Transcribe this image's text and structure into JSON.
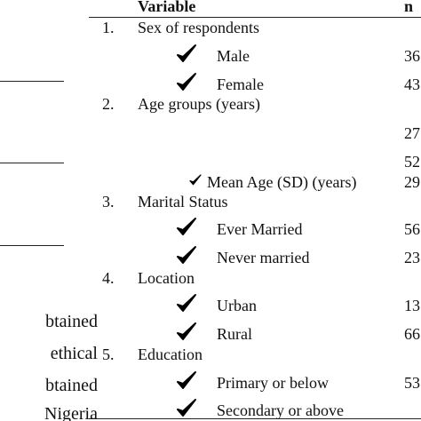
{
  "left_text": [
    "btained",
    "ethical",
    "btained",
    "Nigeria"
  ],
  "header": {
    "variable": "Variable",
    "n": "n"
  },
  "table": {
    "rows": [
      {
        "num": "1.",
        "label": "Sex of respondents"
      },
      {
        "label": "Male",
        "n": "36",
        "check": "large"
      },
      {
        "label": "Female",
        "n": "43",
        "check": "large"
      },
      {
        "num": "2.",
        "label": "Age groups (years)"
      },
      {
        "n": "27"
      },
      {
        "n": "52"
      },
      {
        "label": "Mean Age (SD) (years)",
        "n": "29",
        "check": "small"
      },
      {
        "num": "3.",
        "label": "Marital Status"
      },
      {
        "label": "Ever Married",
        "n": "56",
        "check": "large"
      },
      {
        "label": "Never married",
        "n": "23",
        "check": "large"
      },
      {
        "num": "4.",
        "label": "Location"
      },
      {
        "label": "Urban",
        "n": "13",
        "check": "large"
      },
      {
        "label": "Rural",
        "n": "66",
        "check": "large"
      },
      {
        "num": "5.",
        "label": "Education"
      },
      {
        "label": "Primary or below",
        "n": "53",
        "check": "large"
      },
      {
        "label": "Secondary or above",
        "check": "large"
      }
    ]
  }
}
